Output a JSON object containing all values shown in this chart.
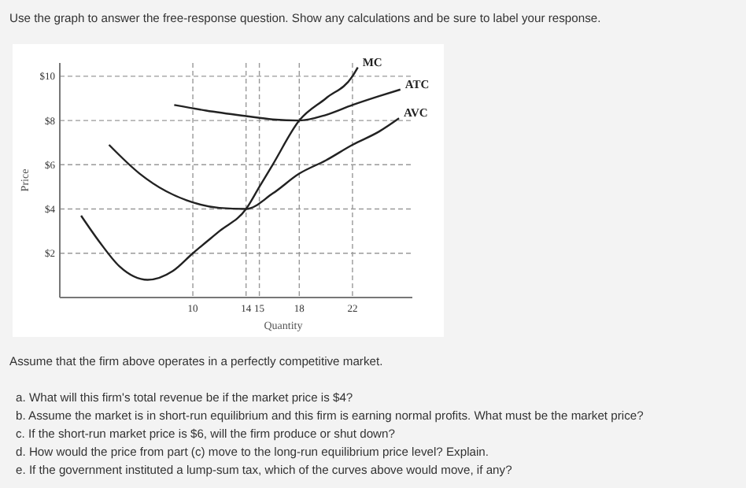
{
  "chart_data": {
    "type": "line",
    "title": "Use the graph to answer the free-response question. Show any calculations and be sure to label your response.",
    "xlabel": "Quantity",
    "ylabel": "Price",
    "xlim": [
      0,
      26.5
    ],
    "ylim": [
      0,
      10.6
    ],
    "xticks": [
      10,
      14,
      15,
      18,
      22
    ],
    "yticks": [
      {
        "value": 2,
        "label": "$2"
      },
      {
        "value": 4,
        "label": "$4"
      },
      {
        "value": 6,
        "label": "$6"
      },
      {
        "value": 8,
        "label": "$8"
      },
      {
        "value": 10,
        "label": "$10"
      }
    ],
    "grid": true,
    "legend": false,
    "marker": "none",
    "line_style": "solid",
    "series": [
      {
        "name": "MC",
        "color": "#222222",
        "x": [
          1.6,
          3,
          4.5,
          6.6,
          8.5,
          10,
          12,
          14,
          15,
          16,
          18,
          20,
          22,
          22.4
        ],
        "values": [
          3.7,
          2.5,
          1.4,
          0.8,
          1.2,
          2,
          3,
          4,
          5,
          6,
          8,
          9,
          10,
          10.4
        ]
      },
      {
        "name": "ATC",
        "color": "#222222",
        "x": [
          8.6,
          11,
          14,
          16,
          18,
          20,
          22,
          24,
          25.6
        ],
        "values": [
          8.7,
          8.45,
          8.2,
          8.05,
          8,
          8.25,
          8.7,
          9.1,
          9.4
        ]
      },
      {
        "name": "AVC",
        "color": "#222222",
        "x": [
          3.7,
          6,
          8,
          10,
          12,
          14,
          16,
          18,
          20,
          22,
          24,
          25.5
        ],
        "values": [
          6.9,
          5.6,
          4.8,
          4.3,
          4.05,
          4,
          4.7,
          5.6,
          6.2,
          6.9,
          7.5,
          8.1
        ]
      }
    ],
    "annotations": [
      "Assume that the firm above operates in a perfectly competitive market.",
      "a. What will this firm's total revenue be if the market price is $4?",
      "b. Assume the market is in short-run equilibrium and this firm is earning normal profits. What must be the market price?",
      "c. If the short-run market price is $6, will the firm produce or shut down?",
      "d. How would the price from part (c) move to the long-run equilibrium price level? Explain.",
      "e. If the government instituted a lump-sum tax, which of the curves above would move, if any?"
    ]
  }
}
